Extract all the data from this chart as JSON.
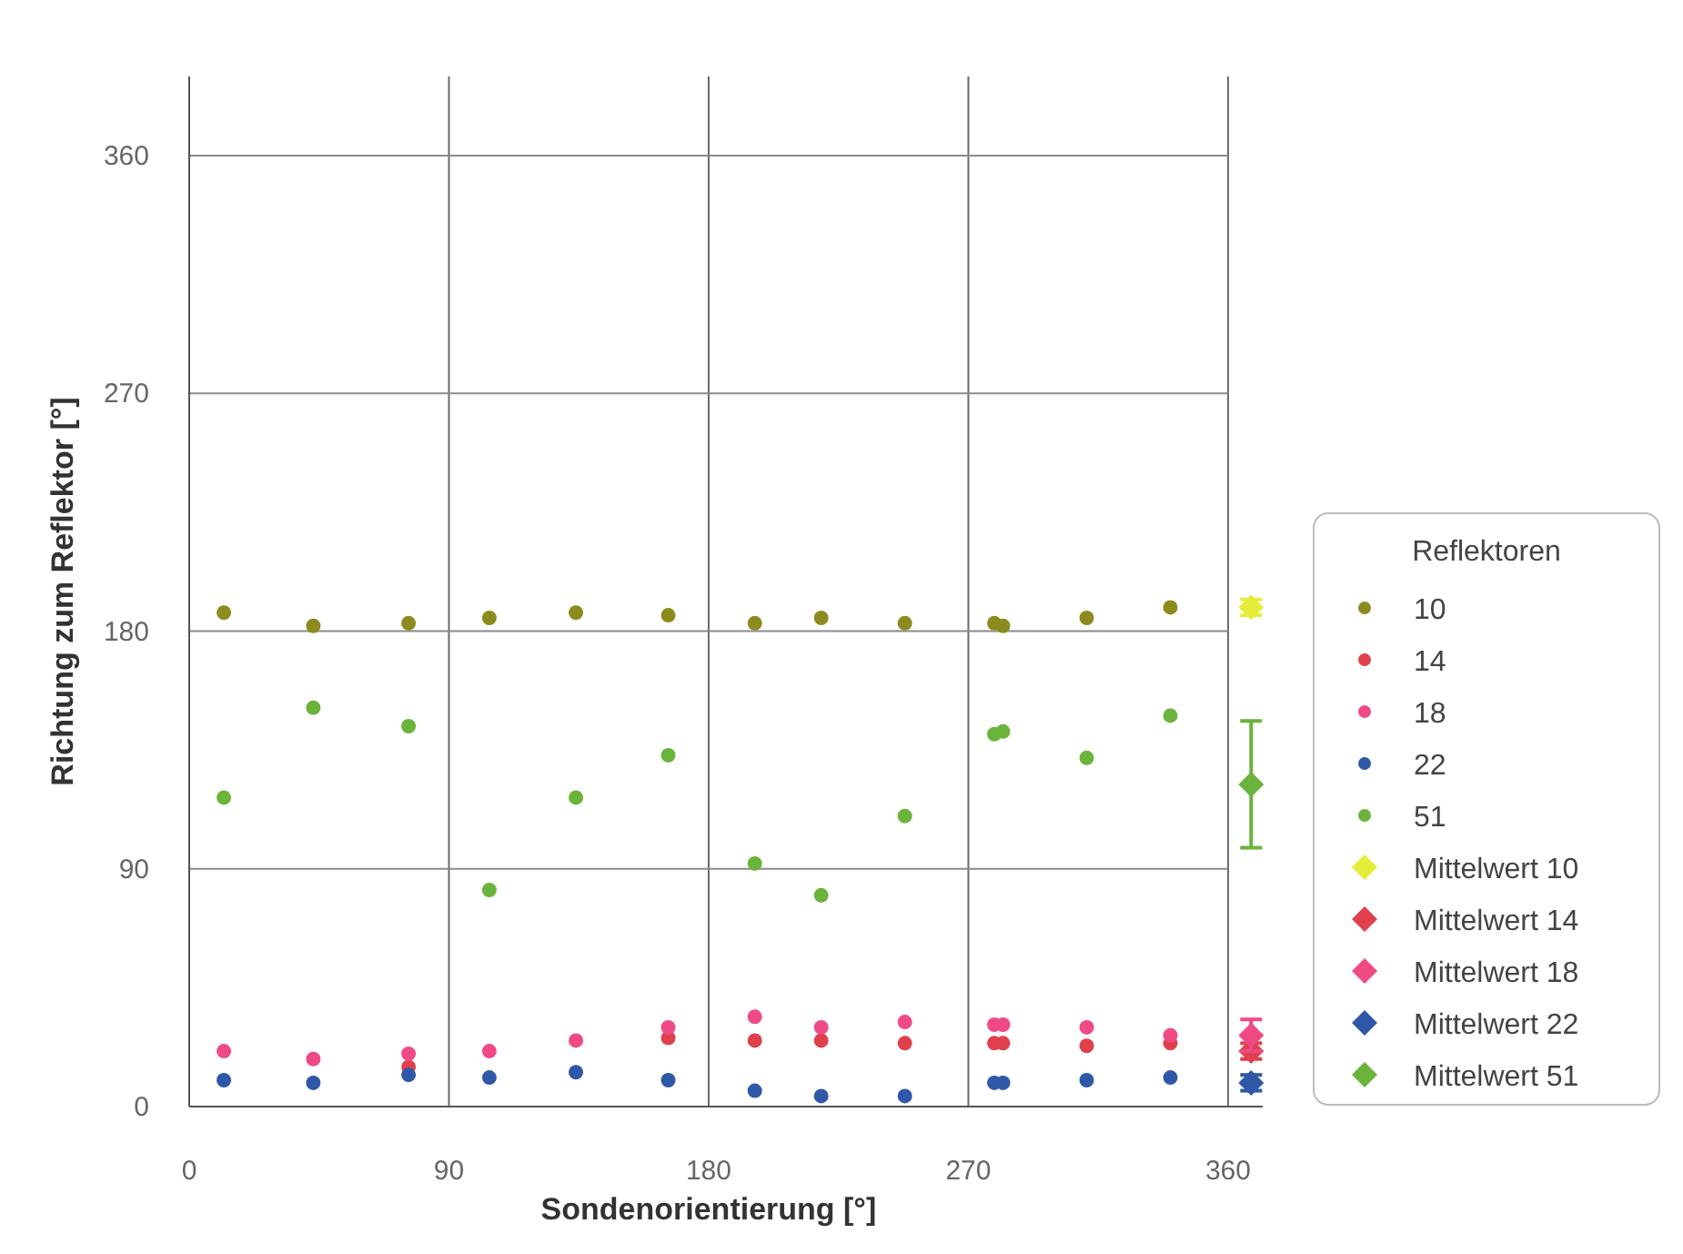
{
  "chart_data": {
    "type": "scatter",
    "xlabel": "Sondenorientierung [°]",
    "ylabel": "Richtung zum Reflektor [°]",
    "legend_title": "Reflektoren",
    "legend": "right",
    "grid": true,
    "marker": "circle",
    "xlim": [
      0,
      372
    ],
    "xticks": [
      0,
      90,
      180,
      270,
      360
    ],
    "ylim": [
      0,
      390
    ],
    "yticks": [
      0,
      90,
      180,
      270,
      360
    ],
    "series": [
      {
        "name": "10",
        "color": "#8c8c1e",
        "x": [
          12,
          43,
          76,
          104,
          134,
          166,
          196,
          219,
          248,
          279,
          282,
          311,
          340
        ],
        "values": [
          187,
          182,
          183,
          185,
          187,
          186,
          183,
          185,
          183,
          183,
          182,
          185,
          189
        ]
      },
      {
        "name": "14",
        "color": "#e0404c",
        "x": [
          76,
          166,
          196,
          219,
          248,
          279,
          282,
          311,
          340
        ],
        "values": [
          15,
          26,
          25,
          25,
          24,
          24,
          24,
          23,
          24
        ]
      },
      {
        "name": "18",
        "color": "#f04a86",
        "x": [
          12,
          43,
          76,
          104,
          134,
          166,
          196,
          219,
          248,
          279,
          282,
          311,
          340
        ],
        "values": [
          21,
          18,
          20,
          21,
          25,
          30,
          34,
          30,
          32,
          31,
          31,
          30,
          27
        ]
      },
      {
        "name": "22",
        "color": "#2f58a8",
        "x": [
          12,
          43,
          76,
          104,
          134,
          166,
          196,
          219,
          248,
          279,
          282,
          311,
          340
        ],
        "values": [
          10,
          9,
          12,
          11,
          13,
          10,
          6,
          4,
          4,
          9,
          9,
          10,
          11
        ]
      },
      {
        "name": "51",
        "color": "#6ab43c",
        "x": [
          12,
          43,
          76,
          104,
          134,
          166,
          196,
          219,
          248,
          279,
          282,
          311,
          340
        ],
        "values": [
          117,
          151,
          144,
          82,
          117,
          133,
          92,
          80,
          110,
          141,
          142,
          132,
          148
        ]
      },
      {
        "name": "Mittelwert 10",
        "color": "#e4ee3a",
        "marker": "diamond",
        "x": [
          368
        ],
        "values": [
          189
        ],
        "errors": [
          3
        ]
      },
      {
        "name": "Mittelwert 14",
        "color": "#e0404c",
        "marker": "diamond",
        "x": [
          368
        ],
        "values": [
          21
        ],
        "errors": [
          3
        ]
      },
      {
        "name": "Mittelwert 18",
        "color": "#f04a86",
        "marker": "diamond",
        "x": [
          368
        ],
        "values": [
          27
        ],
        "errors": [
          6
        ]
      },
      {
        "name": "Mittelwert 22",
        "color": "#2f58a8",
        "marker": "diamond",
        "x": [
          368
        ],
        "values": [
          9
        ],
        "errors": [
          3
        ]
      },
      {
        "name": "Mittelwert 51",
        "color": "#6ab43c",
        "marker": "diamond",
        "x": [
          368
        ],
        "values": [
          122
        ],
        "errors": [
          24
        ]
      }
    ]
  }
}
